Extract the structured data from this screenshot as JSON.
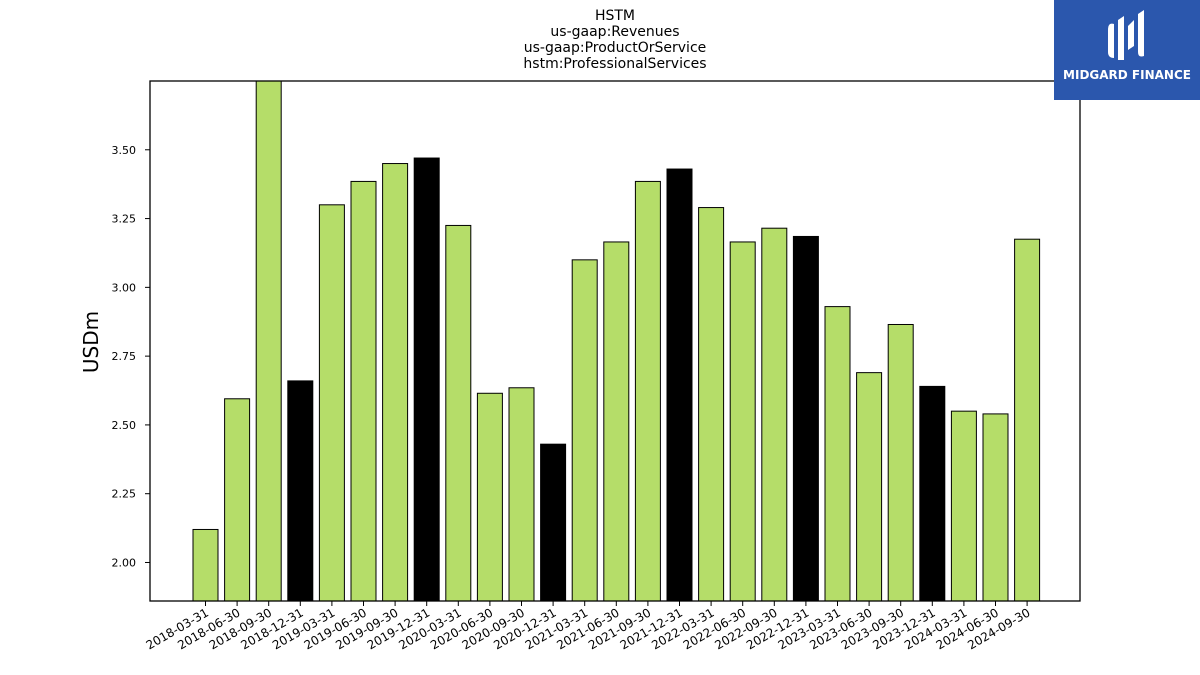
{
  "chart_data": {
    "type": "bar",
    "title_lines": [
      "HSTM",
      "us-gaap:Revenues",
      "us-gaap:ProductOrService",
      "hstm:ProfessionalServices"
    ],
    "xlabel": "",
    "ylabel": "USDm",
    "ylim": [
      1.86,
      3.75
    ],
    "yticks": [
      "2.00",
      "2.25",
      "2.50",
      "2.75",
      "3.00",
      "3.25",
      "3.50"
    ],
    "grid": false,
    "categories": [
      "2018-03-31",
      "2018-06-30",
      "2018-09-30",
      "2018-12-31",
      "2019-03-31",
      "2019-06-30",
      "2019-09-30",
      "2019-12-31",
      "2020-03-31",
      "2020-06-30",
      "2020-09-30",
      "2020-12-31",
      "2021-03-31",
      "2021-06-30",
      "2021-09-30",
      "2021-12-31",
      "2022-03-31",
      "2022-06-30",
      "2022-09-30",
      "2022-12-31",
      "2023-03-31",
      "2023-06-30",
      "2023-09-30",
      "2023-12-31",
      "2024-03-31",
      "2024-06-30",
      "2024-09-30"
    ],
    "values": [
      2.12,
      2.595,
      3.75,
      2.66,
      3.3,
      3.385,
      3.45,
      3.47,
      3.225,
      2.615,
      2.635,
      2.43,
      3.1,
      3.165,
      3.385,
      3.43,
      3.29,
      3.165,
      3.215,
      3.185,
      2.93,
      2.69,
      2.865,
      2.64,
      2.55,
      2.54,
      3.175
    ],
    "highlight": [
      false,
      false,
      false,
      true,
      false,
      false,
      false,
      true,
      false,
      false,
      false,
      true,
      false,
      false,
      false,
      true,
      false,
      false,
      false,
      true,
      false,
      false,
      false,
      true,
      false,
      false,
      false
    ],
    "colors": {
      "bar": "#b5dd69",
      "highlight_bar": "#000000",
      "edge": "#000000"
    }
  },
  "logo": {
    "text": "MIDGARD FINANCE",
    "background": "#2b57ad"
  }
}
